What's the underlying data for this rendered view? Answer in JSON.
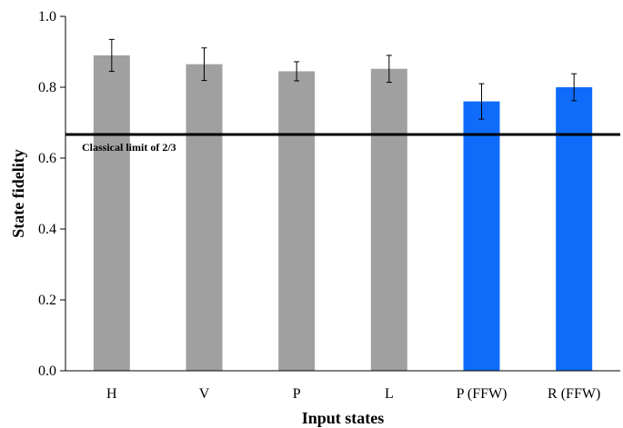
{
  "chart_data": {
    "type": "bar",
    "xlabel": "Input states",
    "ylabel": "State fidelity",
    "ylim": [
      0,
      1.0
    ],
    "yticks": [
      "0.0",
      "0.2",
      "0.4",
      "0.6",
      "0.8",
      "1.0"
    ],
    "grid": false,
    "categories": [
      "H",
      "V",
      "P",
      "L",
      "P (FFW)",
      "R (FFW)"
    ],
    "values": [
      0.89,
      0.865,
      0.845,
      0.852,
      0.76,
      0.8
    ],
    "errors": [
      0.045,
      0.046,
      0.027,
      0.038,
      0.05,
      0.038
    ],
    "bar_colors": [
      "#a0a0a0",
      "#a0a0a0",
      "#a0a0a0",
      "#a0a0a0",
      "#0f6cfa",
      "#0f6cfa"
    ],
    "reference_line": {
      "value": 0.6667,
      "label": "Classical limit of 2/3",
      "color": "#000000"
    }
  }
}
